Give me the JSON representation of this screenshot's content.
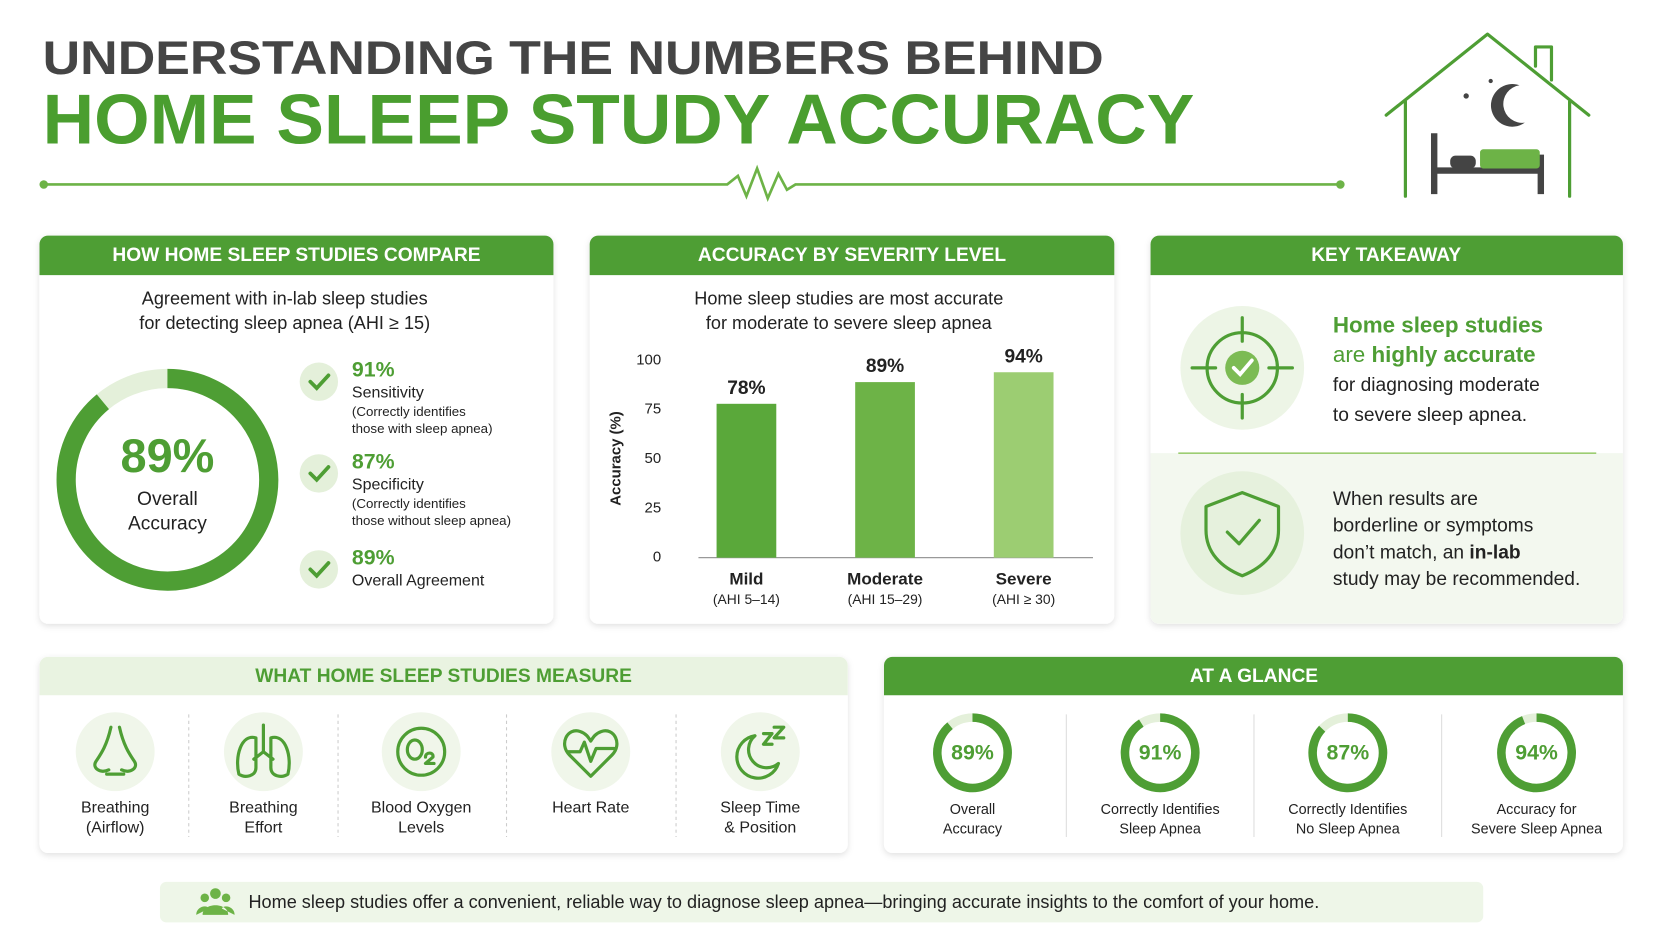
{
  "header": {
    "title_line1": "UNDERSTANDING THE NUMBERS BEHIND",
    "title_line2": "HOME SLEEP STUDY ACCURACY"
  },
  "compare": {
    "heading": "HOW HOME SLEEP STUDIES COMPARE",
    "subtitle": [
      "Agreement with in-lab sleep studies",
      "for detecting sleep apnea (AHI ≥ 15)"
    ],
    "donut": {
      "value": 89,
      "value_label": "89%",
      "label": [
        "Overall",
        "Accuracy"
      ],
      "color": "#4e9e34",
      "track": "#e4f0da"
    },
    "metrics": [
      {
        "value": 91,
        "value_label": "91%",
        "name": "Sensitivity",
        "note": [
          "(Correctly identifies",
          "those with sleep apnea)"
        ]
      },
      {
        "value": 87,
        "value_label": "87%",
        "name": "Specificity",
        "note": [
          "(Correctly identifies",
          "those without sleep apnea)"
        ]
      },
      {
        "value": 89,
        "value_label": "89%",
        "name": "Overall Agreement",
        "note": []
      }
    ]
  },
  "chart_data": {
    "type": "bar",
    "title": "ACCURACY BY SEVERITY LEVEL",
    "subtitle": [
      "Home sleep studies are most accurate",
      "for moderate to severe sleep apnea"
    ],
    "ylabel": "Accuracy (%)",
    "categories": [
      "Mild",
      "Moderate",
      "Severe"
    ],
    "category_notes": [
      "(AHI 5–14)",
      "(AHI 15–29)",
      "(AHI ≥ 30)"
    ],
    "values": [
      78,
      89,
      94
    ],
    "value_labels": [
      "78%",
      "89%",
      "94%"
    ],
    "colors": [
      "#5aa83a",
      "#6db347",
      "#9ccd72"
    ],
    "ylim": [
      0,
      100
    ],
    "yticks": [
      0,
      25,
      50,
      75,
      100
    ],
    "grid": false
  },
  "takeaway": {
    "heading": "KEY TAKEAWAY",
    "top_lines": [
      {
        "accent": true,
        "segments": [
          {
            "text": "Home sleep studies",
            "bold": true
          }
        ]
      },
      {
        "accent": true,
        "segments": [
          {
            "text": "are ",
            "bold": false
          },
          {
            "text": "highly accurate",
            "bold": true
          }
        ]
      },
      {
        "accent": false,
        "segments": [
          {
            "text": "for diagnosing moderate",
            "bold": false
          }
        ]
      },
      {
        "accent": false,
        "segments": [
          {
            "text": "to severe sleep apnea.",
            "bold": false
          }
        ]
      }
    ],
    "bottom_lines": [
      {
        "accent": false,
        "segments": [
          {
            "text": "When results are",
            "bold": false
          }
        ]
      },
      {
        "accent": false,
        "segments": [
          {
            "text": "borderline or symptoms",
            "bold": false
          }
        ]
      },
      {
        "accent": false,
        "segments": [
          {
            "text": "don’t match, an ",
            "bold": false
          },
          {
            "text": "in-lab",
            "bold": true
          }
        ]
      },
      {
        "accent": false,
        "segments": [
          {
            "text": "study may be recommended.",
            "bold": false
          }
        ]
      }
    ]
  },
  "measure": {
    "heading": "WHAT HOME SLEEP STUDIES MEASURE",
    "items": [
      [
        "Breathing",
        "(Airflow)"
      ],
      [
        "Breathing",
        "Effort"
      ],
      [
        "Blood Oxygen",
        "Levels"
      ],
      [
        "Heart Rate"
      ],
      [
        "Sleep Time",
        "& Position"
      ]
    ]
  },
  "glance": {
    "heading": "AT A GLANCE",
    "color": "#4e9e34",
    "track": "#e4f0da",
    "items": [
      {
        "value": 89,
        "value_label": "89%",
        "label": [
          "Overall",
          "Accuracy"
        ]
      },
      {
        "value": 91,
        "value_label": "91%",
        "label": [
          "Correctly Identifies",
          "Sleep Apnea"
        ]
      },
      {
        "value": 87,
        "value_label": "87%",
        "label": [
          "Correctly Identifies",
          "No Sleep Apnea"
        ]
      },
      {
        "value": 94,
        "value_label": "94%",
        "label": [
          "Accuracy for",
          "Severe Sleep Apnea"
        ]
      }
    ]
  },
  "footer": "Home sleep studies offer a convenient, reliable way to diagnose sleep apnea—bringing accurate insights to the comfort of your home."
}
